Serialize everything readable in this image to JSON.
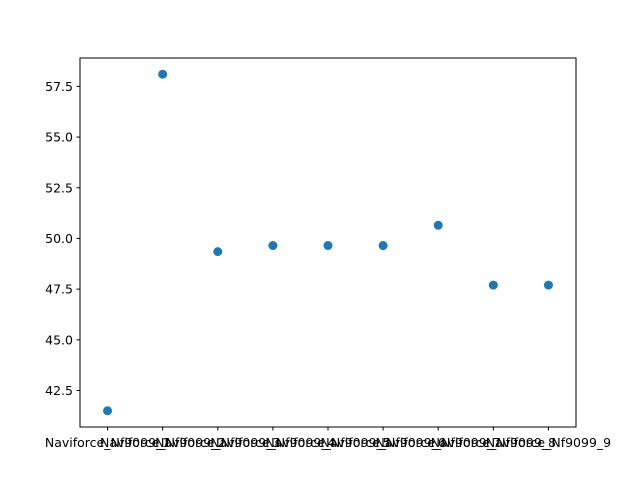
{
  "chart_data": {
    "type": "scatter",
    "title": "",
    "xlabel": "",
    "ylabel": "",
    "categories": [
      "Naviforce_Nf9099_1",
      "Naviforce_Nf9099_2",
      "Naviforce_Nf9099_3",
      "Naviforce_Nf9099_4",
      "Naviforce_Nf9099_5",
      "Naviforce_Nf9099_6",
      "Naviforce_Nf9099_7",
      "Naviforce_Nf9099_8",
      "Naviforce_Nf9099_9"
    ],
    "values": [
      41.5,
      58.1,
      49.35,
      49.65,
      49.65,
      49.65,
      50.65,
      47.7,
      47.7
    ],
    "ylim": [
      40.7,
      58.9
    ],
    "yticks": [
      42.5,
      45.0,
      47.5,
      50.0,
      52.5,
      55.0,
      57.5
    ],
    "ytick_labels": [
      "42.5",
      "45.0",
      "47.5",
      "50.0",
      "52.5",
      "55.0",
      "57.5"
    ],
    "grid": false,
    "colors": {
      "marker": "#1f77b4",
      "axis": "#000000"
    }
  }
}
